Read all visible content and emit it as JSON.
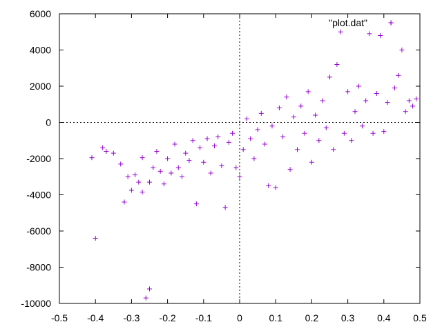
{
  "chart_data": {
    "type": "scatter",
    "legend": {
      "label": "\"plot.dat\"",
      "placement": "top-right",
      "marker": "+"
    },
    "series": [
      {
        "name": "\"plot.dat\"",
        "color": "#9400d3",
        "marker": "plus",
        "points": [
          [
            -0.41,
            -1950
          ],
          [
            -0.4,
            -6400
          ],
          [
            -0.38,
            -1400
          ],
          [
            -0.37,
            -1600
          ],
          [
            -0.35,
            -1700
          ],
          [
            -0.33,
            -2300
          ],
          [
            -0.32,
            -4400
          ],
          [
            -0.31,
            -3000
          ],
          [
            -0.3,
            -3750
          ],
          [
            -0.29,
            -2900
          ],
          [
            -0.28,
            -3300
          ],
          [
            -0.27,
            -3850
          ],
          [
            -0.27,
            -1950
          ],
          [
            -0.26,
            -9700
          ],
          [
            -0.25,
            -9200
          ],
          [
            -0.25,
            -3300
          ],
          [
            -0.24,
            -2500
          ],
          [
            -0.23,
            -1600
          ],
          [
            -0.22,
            -2700
          ],
          [
            -0.21,
            -3400
          ],
          [
            -0.2,
            -2000
          ],
          [
            -0.19,
            -2800
          ],
          [
            -0.18,
            -1200
          ],
          [
            -0.17,
            -2500
          ],
          [
            -0.16,
            -3000
          ],
          [
            -0.15,
            -1700
          ],
          [
            -0.14,
            -2100
          ],
          [
            -0.13,
            -1000
          ],
          [
            -0.12,
            -4500
          ],
          [
            -0.11,
            -1400
          ],
          [
            -0.1,
            -2200
          ],
          [
            -0.09,
            -900
          ],
          [
            -0.08,
            -2800
          ],
          [
            -0.07,
            -1300
          ],
          [
            -0.06,
            -800
          ],
          [
            -0.05,
            -2400
          ],
          [
            -0.04,
            -4700
          ],
          [
            -0.03,
            -1100
          ],
          [
            -0.02,
            -600
          ],
          [
            -0.01,
            -2500
          ],
          [
            0.0,
            -3000
          ],
          [
            0.01,
            -1500
          ],
          [
            0.02,
            200
          ],
          [
            0.03,
            -900
          ],
          [
            0.04,
            -2000
          ],
          [
            0.05,
            -400
          ],
          [
            0.06,
            500
          ],
          [
            0.07,
            -1200
          ],
          [
            0.08,
            -3500
          ],
          [
            0.09,
            -200
          ],
          [
            0.1,
            -3600
          ],
          [
            0.11,
            800
          ],
          [
            0.12,
            -800
          ],
          [
            0.13,
            1400
          ],
          [
            0.14,
            -2600
          ],
          [
            0.15,
            300
          ],
          [
            0.16,
            -1500
          ],
          [
            0.17,
            900
          ],
          [
            0.18,
            -600
          ],
          [
            0.19,
            1700
          ],
          [
            0.2,
            -2200
          ],
          [
            0.21,
            400
          ],
          [
            0.22,
            -1000
          ],
          [
            0.23,
            1200
          ],
          [
            0.24,
            -300
          ],
          [
            0.25,
            2500
          ],
          [
            0.26,
            -1500
          ],
          [
            0.27,
            3200
          ],
          [
            0.28,
            5000
          ],
          [
            0.29,
            -600
          ],
          [
            0.3,
            1700
          ],
          [
            0.31,
            -1000
          ],
          [
            0.32,
            600
          ],
          [
            0.33,
            2000
          ],
          [
            0.34,
            -200
          ],
          [
            0.35,
            1200
          ],
          [
            0.36,
            4900
          ],
          [
            0.37,
            -600
          ],
          [
            0.38,
            1600
          ],
          [
            0.39,
            4800
          ],
          [
            0.4,
            -500
          ],
          [
            0.41,
            1100
          ],
          [
            0.42,
            5500
          ],
          [
            0.43,
            1900
          ],
          [
            0.44,
            2600
          ],
          [
            0.45,
            4000
          ],
          [
            0.46,
            600
          ],
          [
            0.47,
            1200
          ],
          [
            0.48,
            900
          ],
          [
            0.49,
            1300
          ]
        ]
      }
    ],
    "xlim": [
      -0.5,
      0.5
    ],
    "ylim": [
      -10000,
      6000
    ],
    "x_ticks": [
      "-0.5",
      "-0.4",
      "-0.3",
      "-0.2",
      "-0.1",
      "0",
      "0.1",
      "0.2",
      "0.3",
      "0.4",
      "0.5"
    ],
    "y_ticks": [
      "6000",
      "4000",
      "2000",
      "0",
      "-2000",
      "-4000",
      "-6000",
      "-8000",
      "-10000"
    ],
    "zero_axes": true,
    "grid": false
  }
}
